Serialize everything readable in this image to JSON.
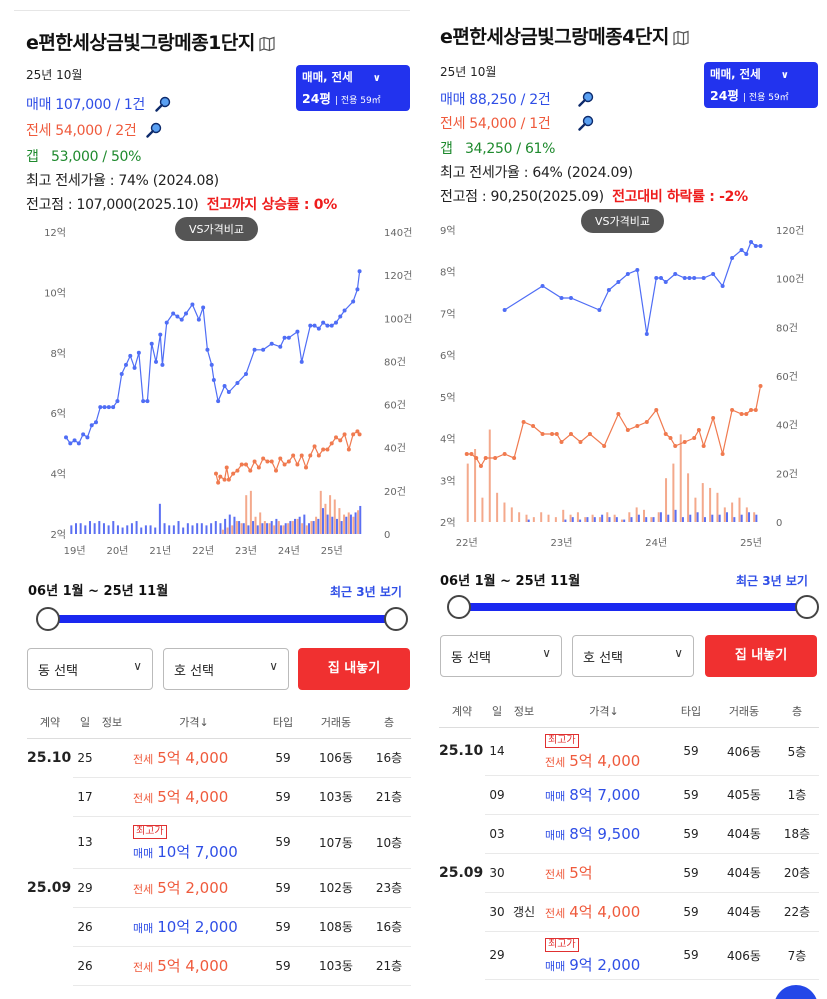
{
  "panels": [
    {
      "title": "e편한세상금빛그랑메종1단지",
      "icon": "map-icon",
      "year_month": "25년 10월",
      "sale": "매매 107,000 / 1건",
      "jeonse": "전세 54,000 / 2건",
      "gap_label": "갭",
      "gap_value": "53,000 / 50%",
      "max_ratio": "최고 전세가율 : 74% (2024.08)",
      "peak": "전고점 : 107,000(2025.10)",
      "peak_note": "전고까지 상승률 : 0%",
      "deal_type": "매매, 전세",
      "pyeong": "24평",
      "area": "전용 59㎡",
      "vs_label": "VS가격비교",
      "range": "06년 1월 ~ 25년 11월",
      "recent": "최근 3년 보기",
      "dong_select": "동 선택",
      "ho_select": "호 선택",
      "home_button": "집 내놓기",
      "table_headers": [
        "계약",
        "일",
        "정보",
        "가격↓",
        "타입",
        "거래동",
        "층"
      ],
      "rows": [
        {
          "contract": "25.10",
          "day": "25",
          "info": "",
          "badge": "",
          "ptype": "전세",
          "price": "5억 4,000",
          "type": "59",
          "dong": "106동",
          "floor": "16층",
          "kind": "jeonse"
        },
        {
          "contract": "",
          "day": "17",
          "info": "",
          "badge": "",
          "ptype": "전세",
          "price": "5억 4,000",
          "type": "59",
          "dong": "103동",
          "floor": "21층",
          "kind": "jeonse"
        },
        {
          "contract": "",
          "day": "13",
          "info": "",
          "badge": "최고가",
          "ptype": "매매",
          "price": "10억 7,000",
          "type": "59",
          "dong": "107동",
          "floor": "10층",
          "kind": "sale"
        },
        {
          "contract": "25.09",
          "day": "29",
          "info": "",
          "badge": "",
          "ptype": "전세",
          "price": "5억 2,000",
          "type": "59",
          "dong": "102동",
          "floor": "23층",
          "kind": "jeonse"
        },
        {
          "contract": "",
          "day": "26",
          "info": "",
          "badge": "",
          "ptype": "매매",
          "price": "10억 2,000",
          "type": "59",
          "dong": "108동",
          "floor": "16층",
          "kind": "sale"
        },
        {
          "contract": "",
          "day": "26",
          "info": "",
          "badge": "",
          "ptype": "전세",
          "price": "5억 4,000",
          "type": "59",
          "dong": "103동",
          "floor": "21층",
          "kind": "jeonse"
        }
      ]
    },
    {
      "title": "e편한세상금빛그랑메종4단지",
      "icon": "map-icon",
      "year_month": "25년 10월",
      "sale": "매매 88,250 / 2건",
      "jeonse": "전세 54,000 / 1건",
      "gap_label": "갭",
      "gap_value": "34,250 / 61%",
      "max_ratio": "최고 전세가율 : 64% (2024.09)",
      "peak": "전고점 : 90,250(2025.09)",
      "peak_note": "전고대비 하락률 : -2%",
      "deal_type": "매매, 전세",
      "pyeong": "24평",
      "area": "전용 59㎡",
      "vs_label": "VS가격비교",
      "range": "06년 1월 ~ 25년 11월",
      "recent": "최근 3년 보기",
      "dong_select": "동 선택",
      "ho_select": "호 선택",
      "home_button": "집 내놓기",
      "table_headers": [
        "계약",
        "일",
        "정보",
        "가격↓",
        "타입",
        "거래동",
        "층"
      ],
      "rows": [
        {
          "contract": "25.10",
          "day": "14",
          "info": "",
          "badge": "최고가",
          "ptype": "전세",
          "price": "5억 4,000",
          "type": "59",
          "dong": "406동",
          "floor": "5층",
          "kind": "jeonse"
        },
        {
          "contract": "",
          "day": "09",
          "info": "",
          "badge": "",
          "ptype": "매매",
          "price": "8억 7,000",
          "type": "59",
          "dong": "405동",
          "floor": "1층",
          "kind": "sale"
        },
        {
          "contract": "",
          "day": "03",
          "info": "",
          "badge": "",
          "ptype": "매매",
          "price": "8억 9,500",
          "type": "59",
          "dong": "404동",
          "floor": "18층",
          "kind": "sale"
        },
        {
          "contract": "25.09",
          "day": "30",
          "info": "",
          "badge": "",
          "ptype": "전세",
          "price": "5억",
          "type": "59",
          "dong": "404동",
          "floor": "20층",
          "kind": "jeonse"
        },
        {
          "contract": "",
          "day": "30",
          "info": "갱신",
          "badge": "",
          "ptype": "전세",
          "price": "4억 4,000",
          "type": "59",
          "dong": "404동",
          "floor": "22층",
          "kind": "jeonse"
        },
        {
          "contract": "",
          "day": "29",
          "info": "",
          "badge": "최고가",
          "ptype": "매매",
          "price": "9억 2,000",
          "type": "59",
          "dong": "406동",
          "floor": "7층",
          "kind": "sale"
        }
      ]
    }
  ],
  "chart_data": [
    {
      "type": "line",
      "title": "",
      "y_left_ticks": [
        "2억",
        "4억",
        "6억",
        "8억",
        "10억",
        "12억"
      ],
      "y_right_ticks": [
        "0",
        "20건",
        "40건",
        "60건",
        "80건",
        "100건",
        "120건",
        "140건"
      ],
      "x_ticks": [
        "19년",
        "20년",
        "21년",
        "22년",
        "23년",
        "24년",
        "25년"
      ],
      "x_range": [
        2018.8,
        2025.8
      ],
      "ylim_price_eok": [
        2,
        12
      ],
      "ylim_volume": [
        0,
        140
      ],
      "colors": {
        "sale": "#4f6df5",
        "jeonse": "#f07a4f",
        "volume_sale": "#5b6ff2",
        "volume_jeonse": "#f4a98c"
      },
      "series": [
        {
          "name": "매매",
          "x": [
            2018.8,
            2018.9,
            2019.0,
            2019.1,
            2019.2,
            2019.3,
            2019.4,
            2019.5,
            2019.6,
            2019.7,
            2019.8,
            2019.9,
            2020.0,
            2020.1,
            2020.2,
            2020.3,
            2020.4,
            2020.5,
            2020.6,
            2020.7,
            2020.8,
            2020.9,
            2021.0,
            2021.05,
            2021.15,
            2021.3,
            2021.4,
            2021.5,
            2021.6,
            2021.75,
            2021.9,
            2022.0,
            2022.1,
            2022.2,
            2022.25,
            2022.35,
            2022.5,
            2022.6,
            2022.8,
            2023.0,
            2023.2,
            2023.4,
            2023.6,
            2023.8,
            2023.9,
            2024.0,
            2024.2,
            2024.3,
            2024.5,
            2024.6,
            2024.7,
            2024.8,
            2024.9,
            2025.0,
            2025.1,
            2025.2,
            2025.3,
            2025.5,
            2025.6,
            2025.65
          ],
          "y": [
            5.2,
            5.0,
            5.1,
            5.0,
            5.3,
            5.2,
            5.6,
            5.7,
            6.2,
            6.2,
            6.2,
            6.2,
            6.4,
            7.3,
            7.6,
            7.9,
            7.5,
            8.0,
            6.4,
            6.4,
            8.3,
            7.7,
            8.6,
            7.6,
            9.0,
            9.3,
            9.2,
            9.1,
            9.3,
            9.6,
            9.1,
            9.5,
            8.1,
            7.6,
            7.1,
            6.4,
            6.9,
            6.7,
            7.0,
            7.3,
            8.1,
            8.1,
            8.3,
            8.2,
            8.5,
            8.5,
            8.7,
            7.7,
            8.9,
            8.9,
            8.8,
            9.0,
            8.9,
            8.9,
            9.0,
            9.2,
            9.4,
            9.7,
            10.1,
            10.7
          ]
        },
        {
          "name": "전세",
          "x": [
            2022.3,
            2022.35,
            2022.4,
            2022.5,
            2022.55,
            2022.6,
            2022.7,
            2022.8,
            2022.9,
            2023.0,
            2023.1,
            2023.2,
            2023.3,
            2023.4,
            2023.5,
            2023.6,
            2023.7,
            2023.8,
            2023.9,
            2024.0,
            2024.1,
            2024.2,
            2024.3,
            2024.4,
            2024.5,
            2024.6,
            2024.7,
            2024.8,
            2024.9,
            2025.0,
            2025.1,
            2025.2,
            2025.3,
            2025.4,
            2025.5,
            2025.6,
            2025.65
          ],
          "y": [
            4.0,
            3.7,
            3.9,
            3.8,
            4.2,
            3.8,
            4.0,
            4.1,
            4.3,
            4.3,
            4.1,
            4.4,
            4.2,
            4.5,
            4.4,
            4.4,
            4.1,
            4.5,
            4.3,
            4.4,
            4.6,
            4.3,
            4.6,
            4.2,
            4.6,
            4.9,
            4.6,
            4.8,
            4.8,
            5.0,
            5.2,
            5.1,
            5.3,
            4.8,
            5.3,
            5.4,
            5.3
          ]
        }
      ]
    },
    {
      "type": "line",
      "title": "",
      "y_left_ticks": [
        "2억",
        "3억",
        "4억",
        "5억",
        "6억",
        "7억",
        "8억",
        "9억"
      ],
      "y_right_ticks": [
        "0",
        "20건",
        "40건",
        "60건",
        "80건",
        "100건",
        "120건"
      ],
      "x_ticks": [
        "22년",
        "23년",
        "24년",
        "25년"
      ],
      "x_range": [
        2021.95,
        2025.2
      ],
      "ylim_price_eok": [
        2,
        9.3
      ],
      "ylim_volume": [
        0,
        120
      ],
      "colors": {
        "sale": "#4f6df5",
        "jeonse": "#f07a4f",
        "volume_sale": "#5b6ff2",
        "volume_jeonse": "#f4a98c"
      },
      "series": [
        {
          "name": "매매",
          "x": [
            2022.4,
            2022.8,
            2023.0,
            2023.1,
            2023.4,
            2023.5,
            2023.6,
            2023.7,
            2023.8,
            2023.9,
            2024.0,
            2024.05,
            2024.1,
            2024.2,
            2024.3,
            2024.35,
            2024.4,
            2024.5,
            2024.6,
            2024.7,
            2024.8,
            2024.9,
            2024.95,
            2025.0,
            2025.05,
            2025.1
          ],
          "y": [
            7.3,
            7.9,
            7.6,
            7.6,
            7.3,
            7.8,
            8.0,
            8.2,
            8.3,
            6.7,
            8.1,
            8.1,
            8.0,
            8.2,
            8.1,
            8.1,
            8.1,
            8.1,
            8.2,
            7.9,
            8.6,
            8.8,
            8.7,
            9.0,
            8.9,
            8.9
          ]
        },
        {
          "name": "전세",
          "x": [
            2022.0,
            2022.05,
            2022.1,
            2022.15,
            2022.2,
            2022.3,
            2022.4,
            2022.5,
            2022.6,
            2022.7,
            2022.8,
            2022.9,
            2022.95,
            2023.0,
            2023.1,
            2023.2,
            2023.3,
            2023.45,
            2023.6,
            2023.7,
            2023.8,
            2023.9,
            2024.0,
            2024.1,
            2024.15,
            2024.2,
            2024.3,
            2024.4,
            2024.45,
            2024.5,
            2024.6,
            2024.7,
            2024.8,
            2024.9,
            2024.95,
            2025.0,
            2025.05,
            2025.1
          ],
          "y": [
            3.7,
            3.7,
            3.6,
            3.4,
            3.6,
            3.6,
            3.7,
            3.6,
            4.5,
            4.4,
            4.2,
            4.2,
            4.2,
            4.0,
            4.2,
            4.0,
            4.2,
            3.9,
            4.7,
            4.3,
            4.4,
            4.5,
            4.8,
            4.2,
            4.1,
            3.9,
            4.0,
            4.1,
            4.3,
            3.9,
            4.6,
            3.7,
            4.8,
            4.7,
            4.7,
            4.8,
            4.8,
            5.4
          ]
        }
      ]
    }
  ]
}
